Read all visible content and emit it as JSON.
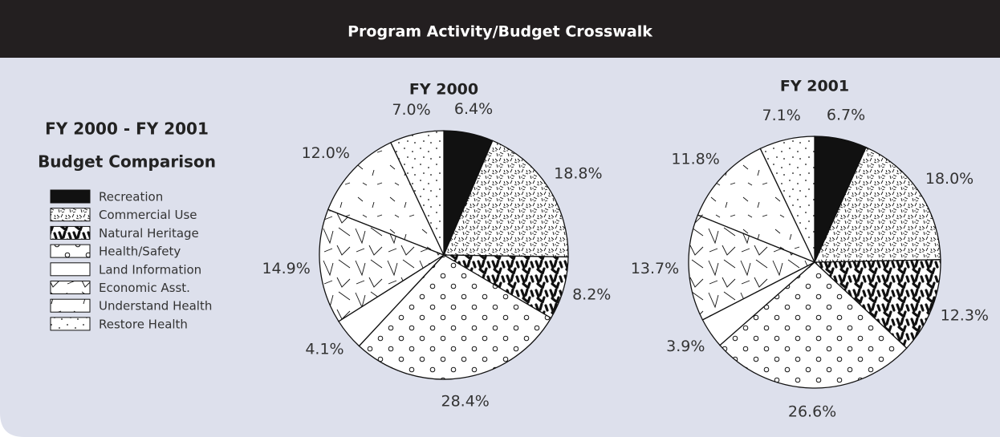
{
  "title": "Program Activity/Budget Crosswalk",
  "legend": {
    "title": [
      "FY 2000 - FY 2001",
      "Budget Comparison"
    ],
    "items": [
      "Recreation",
      "Commercial Use",
      "Natural Heritage",
      "Health/Safety",
      "Land Information",
      "Economic Asst.",
      "Understand Health",
      "Restore Health"
    ]
  },
  "chart_data": [
    {
      "type": "pie",
      "title": "FY 2000",
      "values": [
        6.4,
        18.8,
        8.2,
        28.4,
        4.1,
        14.9,
        12.0,
        7.0
      ],
      "value_labels": [
        "6.4%",
        "18.8%",
        "8.2%",
        "28.4%",
        "4.1%",
        "14.9%",
        "12.0%",
        "7.0%"
      ]
    },
    {
      "type": "pie",
      "title": "FY 2001",
      "values": [
        6.7,
        18.0,
        12.3,
        26.6,
        3.9,
        13.7,
        11.8,
        7.1
      ],
      "value_labels": [
        "6.7%",
        "18.0%",
        "12.3%",
        "26.6%",
        "3.9%",
        "13.7%",
        "11.8%",
        "7.1%"
      ]
    }
  ]
}
